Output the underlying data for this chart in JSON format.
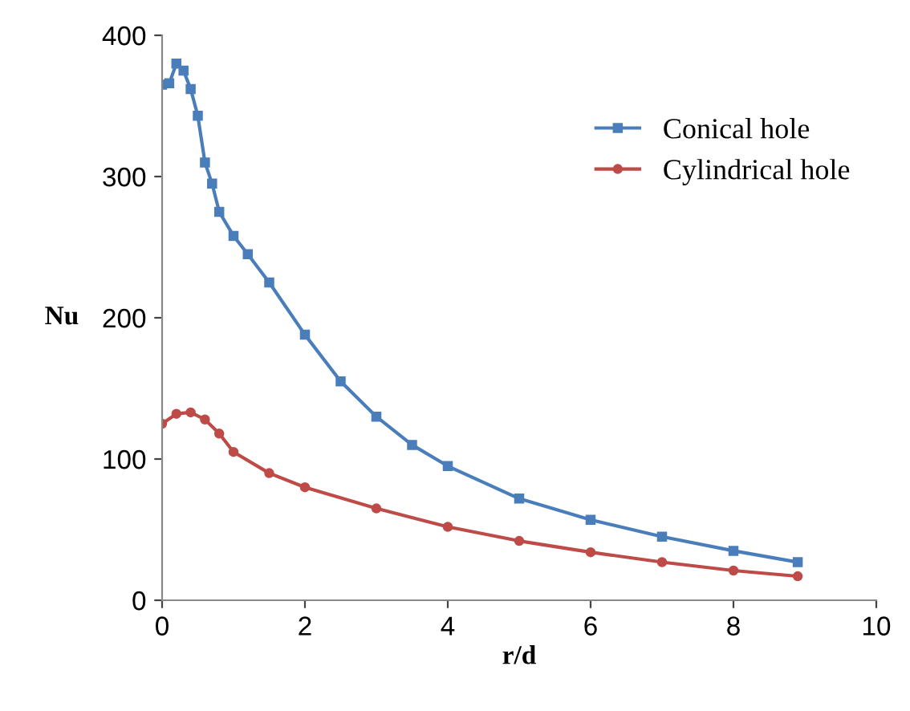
{
  "chart_data": {
    "type": "line",
    "xlabel": "r/d",
    "ylabel": "Nu",
    "xlim": [
      0,
      10
    ],
    "ylim": [
      0,
      400
    ],
    "xticks": [
      0,
      2,
      4,
      6,
      8,
      10
    ],
    "yticks": [
      0,
      100,
      200,
      300,
      400
    ],
    "grid": false,
    "legend": "top right",
    "series": [
      {
        "name": "Conical hole",
        "color": "#4a7ebb",
        "marker": "square",
        "x": [
          0,
          0.1,
          0.2,
          0.3,
          0.4,
          0.5,
          0.6,
          0.7,
          0.8,
          1.0,
          1.2,
          1.5,
          2.0,
          2.5,
          3.0,
          3.5,
          4,
          5,
          6,
          7,
          8,
          8.9
        ],
        "values": [
          365,
          366,
          380,
          375,
          362,
          343,
          310,
          295,
          275,
          258,
          245,
          225,
          188,
          155,
          130,
          110,
          95,
          72,
          57,
          45,
          35,
          27
        ]
      },
      {
        "name": "Cylindrical hole",
        "color": "#be4b48",
        "marker": "circle",
        "x": [
          0,
          0.2,
          0.4,
          0.6,
          0.8,
          1.0,
          1.5,
          2,
          3,
          4,
          5,
          6,
          7,
          8,
          8.9
        ],
        "values": [
          125,
          132,
          133,
          128,
          118,
          105,
          90,
          80,
          65,
          52,
          42,
          34,
          27,
          21,
          17
        ]
      }
    ]
  }
}
